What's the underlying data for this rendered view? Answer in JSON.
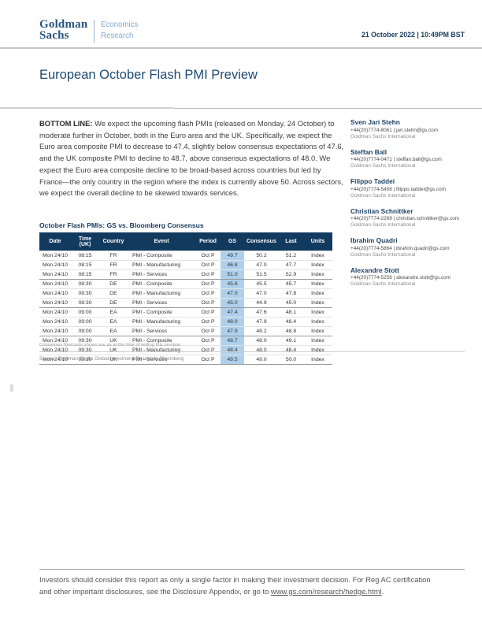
{
  "header": {
    "logo_line1": "Goldman",
    "logo_line2": "Sachs",
    "division_line1": "Economics",
    "division_line2": "Research",
    "datetime": "21 October 2022 | 10:49PM BST"
  },
  "title": "European October Flash PMI Preview",
  "bottom_line": {
    "label": "BOTTOM LINE:",
    "text": " We expect the upcoming flash PMIs (released on Monday, 24 October) to moderate further in October, both in the Euro area and the UK. Specifically, we expect the Euro area composite PMI to decrease to 47.4, slightly below consensus expectations of 47.6, and the UK composite PMI to decline to 48.7, above consensus expectations of 48.0. We expect the Euro area composite decline to be broad-based across countries but led by France—the only country in the region where the index is currently above 50. Across sectors, we expect the overall decline to be skewed towards services."
  },
  "authors": [
    {
      "name": "Sven Jari Stehn",
      "phone": "+44(20)7774-8061",
      "email": "jari.stehn@gs.com",
      "company": "Goldman Sachs International"
    },
    {
      "name": "Steffan Ball",
      "phone": "+44(20)7774-0471",
      "email": "steffan.ball@gs.com",
      "company": "Goldman Sachs International"
    },
    {
      "name": "Filippo Taddei",
      "phone": "+44(20)7774-5458",
      "email": "filippo.taddei@gs.com",
      "company": "Goldman Sachs International"
    },
    {
      "name": "Christian Schnittker",
      "phone": "+44(20)7774-2269",
      "email": "christian.schnittker@gs.com",
      "company": "Goldman Sachs International"
    },
    {
      "name": "Ibrahim Quadri",
      "phone": "+44(20)7774-5864",
      "email": "ibrahim.quadri@gs.com",
      "company": "Goldman Sachs International"
    },
    {
      "name": "Alexandre Stott",
      "phone": "+44(20)7774-5256",
      "email": "alexandre.stott@gs.com",
      "company": "Goldman Sachs International"
    }
  ],
  "table": {
    "title": "October Flash PMIs: GS vs. Bloomberg Consensus",
    "columns": [
      "Date",
      "Time (UK)",
      "Country",
      "Event",
      "Period",
      "GS",
      "Consensus",
      "Last",
      "Units"
    ],
    "rows": [
      [
        "Mon 24/10",
        "08:15",
        "FR",
        "PMI - Composite",
        "Oct P",
        "49.7",
        "50.2",
        "51.2",
        "Index"
      ],
      [
        "Mon 24/10",
        "08:15",
        "FR",
        "PMI - Manufacturing",
        "Oct P",
        "46.8",
        "47.0",
        "47.7",
        "Index"
      ],
      [
        "Mon 24/10",
        "08:15",
        "FR",
        "PMI - Services",
        "Oct P",
        "51.0",
        "51.5",
        "52.9",
        "Index"
      ],
      [
        "Mon 24/10",
        "08:30",
        "DE",
        "PMI - Composite",
        "Oct P",
        "45.6",
        "45.5",
        "45.7",
        "Index"
      ],
      [
        "Mon 24/10",
        "08:30",
        "DE",
        "PMI - Manufacturing",
        "Oct P",
        "47.0",
        "47.0",
        "47.8",
        "Index"
      ],
      [
        "Mon 24/10",
        "08:30",
        "DE",
        "PMI - Services",
        "Oct P",
        "45.0",
        "44.9",
        "45.0",
        "Index"
      ],
      [
        "Mon 24/10",
        "09:00",
        "EA",
        "PMI - Composite",
        "Oct P",
        "47.4",
        "47.6",
        "48.1",
        "Index"
      ],
      [
        "Mon 24/10",
        "09:00",
        "EA",
        "PMI - Manufacturing",
        "Oct P",
        "48.0",
        "47.9",
        "48.4",
        "Index"
      ],
      [
        "Mon 24/10",
        "09:00",
        "EA",
        "PMI - Services",
        "Oct P",
        "47.9",
        "48.2",
        "48.8",
        "Index"
      ],
      [
        "Mon 24/10",
        "09:30",
        "UK",
        "PMI - Composite",
        "Oct P",
        "48.7",
        "48.0",
        "49.1",
        "Index"
      ],
      [
        "Mon 24/10",
        "09:30",
        "UK",
        "PMI - Manufacturing",
        "Oct P",
        "48.4",
        "48.0",
        "48.4",
        "Index"
      ],
      [
        "Mon 24/10",
        "09:30",
        "UK",
        "PMI - Services",
        "Oct P",
        "49.5",
        "49.0",
        "50.0",
        "Index"
      ]
    ],
    "gs_column_index": 5,
    "rows_per_group": 3,
    "footnote": "Consensus forecasts shown are as at the time of writing this preview.",
    "source": "Source: Goldman Sachs Global Investment Research, Bloomberg"
  },
  "footer": {
    "text_before_link": "Investors should consider this report as only a single factor in making their investment decision. For Reg AC certification and other important disclosures, see the Disclosure Appendix, or go to ",
    "link": "www.gs.com/research/hedge.html",
    "text_after_link": "."
  },
  "colors": {
    "brand_navy": "#27547e",
    "title_navy": "#1e4a73",
    "table_header_navy": "#123a5f",
    "division_light_blue": "#85a9cd",
    "gs_column_highlight": "#aed0ec",
    "body_text": "#3d3d3d",
    "rule_gray": "#c6c6c6"
  }
}
